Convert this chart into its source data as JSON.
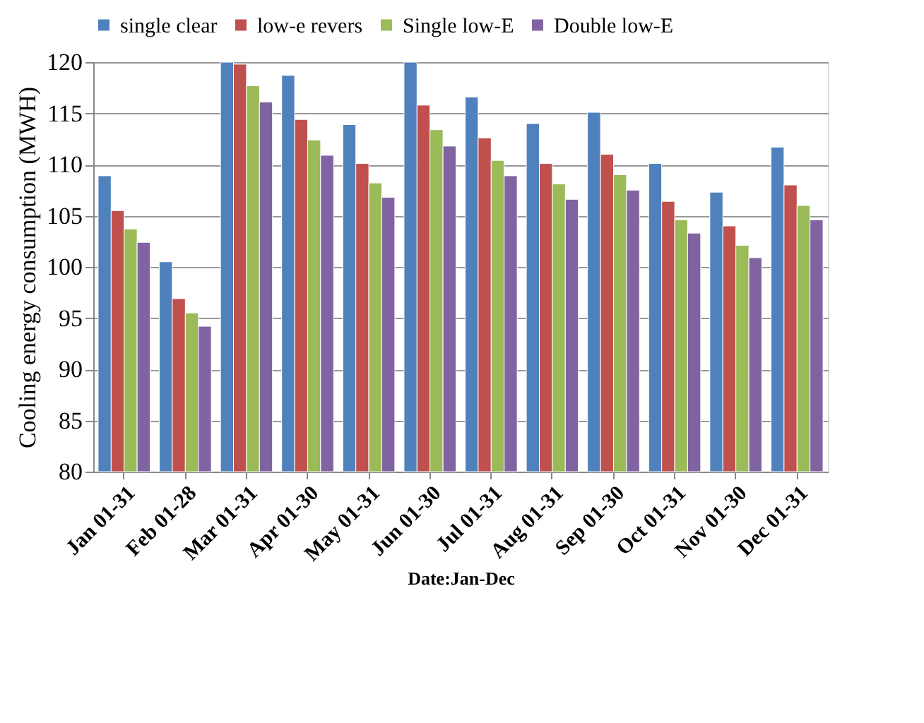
{
  "chart_data": {
    "type": "bar",
    "xlabel": "Date:Jan-Dec",
    "ylabel": "Cooling energy consumption (MWH)",
    "categories": [
      "Jan 01-31",
      "Feb 01-28",
      "Mar 01-31",
      "Apr 01-30",
      "May 01-31",
      "Jun 01-30",
      "Jul 01-31",
      "Aug 01-31",
      "Sep 01-30",
      "Oct 01-31",
      "Nov 01-30",
      "Dec 01-31"
    ],
    "series": [
      {
        "name": "single clear",
        "color": "#4f81bd",
        "values": [
          108.9,
          100.5,
          120,
          118.7,
          113.9,
          120,
          116.6,
          114.0,
          115.1,
          110.1,
          107.3,
          111.7
        ]
      },
      {
        "name": "low-e revers",
        "color": "#c0504d",
        "values": [
          105.5,
          96.9,
          119.8,
          114.4,
          110.1,
          115.8,
          112.6,
          110.1,
          111.0,
          106.4,
          104.0,
          108.0
        ]
      },
      {
        "name": "Single low-E",
        "color": "#9bbb59",
        "values": [
          103.7,
          95.5,
          117.7,
          112.4,
          108.2,
          113.4,
          110.4,
          108.1,
          109.0,
          104.6,
          102.1,
          106.0
        ]
      },
      {
        "name": "Double low-E",
        "color": "#8064a2",
        "values": [
          102.4,
          94.2,
          116.1,
          110.9,
          106.8,
          111.8,
          108.9,
          106.6,
          107.5,
          103.3,
          100.9,
          104.6
        ]
      }
    ],
    "ylim": [
      80,
      120
    ],
    "yticks": [
      80,
      85,
      90,
      95,
      100,
      105,
      110,
      115,
      120
    ],
    "grid": "y",
    "legend": "top"
  }
}
